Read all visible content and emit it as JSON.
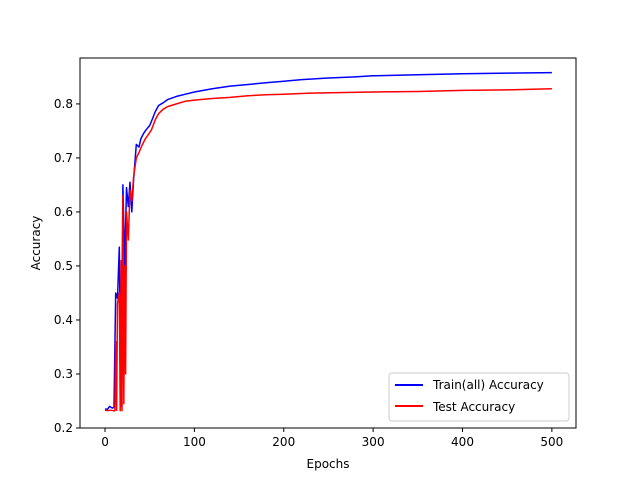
{
  "chart_data": {
    "type": "line",
    "title": "",
    "xlabel": "Epochs",
    "ylabel": "Accuracy",
    "xlim": [
      -28,
      527
    ],
    "ylim": [
      0.2,
      0.885
    ],
    "xticks": [
      0,
      100,
      200,
      300,
      400,
      500
    ],
    "yticks": [
      0.2,
      0.3,
      0.4,
      0.5,
      0.6,
      0.7,
      0.8
    ],
    "xtick_labels": [
      "0",
      "100",
      "200",
      "300",
      "400",
      "500"
    ],
    "ytick_labels": [
      "0.2",
      "0.3",
      "0.4",
      "0.5",
      "0.6",
      "0.7",
      "0.8"
    ],
    "grid": false,
    "legend_position": "lower-right",
    "series": [
      {
        "name": "Train(all) Accuracy",
        "color": "#0000ff",
        "points": [
          [
            0,
            0.235
          ],
          [
            3,
            0.235
          ],
          [
            5,
            0.24
          ],
          [
            8,
            0.237
          ],
          [
            10,
            0.238
          ],
          [
            12,
            0.45
          ],
          [
            14,
            0.44
          ],
          [
            16,
            0.535
          ],
          [
            18,
            0.24
          ],
          [
            20,
            0.65
          ],
          [
            22,
            0.5
          ],
          [
            24,
            0.645
          ],
          [
            26,
            0.61
          ],
          [
            28,
            0.655
          ],
          [
            30,
            0.6
          ],
          [
            32,
            0.66
          ],
          [
            35,
            0.725
          ],
          [
            38,
            0.72
          ],
          [
            40,
            0.735
          ],
          [
            43,
            0.745
          ],
          [
            46,
            0.752
          ],
          [
            50,
            0.76
          ],
          [
            53,
            0.772
          ],
          [
            56,
            0.785
          ],
          [
            60,
            0.797
          ],
          [
            65,
            0.802
          ],
          [
            70,
            0.808
          ],
          [
            80,
            0.814
          ],
          [
            90,
            0.818
          ],
          [
            100,
            0.822
          ],
          [
            120,
            0.828
          ],
          [
            140,
            0.833
          ],
          [
            160,
            0.836
          ],
          [
            180,
            0.839
          ],
          [
            200,
            0.842
          ],
          [
            220,
            0.845
          ],
          [
            250,
            0.848
          ],
          [
            280,
            0.85
          ],
          [
            300,
            0.852
          ],
          [
            350,
            0.854
          ],
          [
            400,
            0.856
          ],
          [
            450,
            0.857
          ],
          [
            500,
            0.858
          ]
        ]
      },
      {
        "name": "Test Accuracy",
        "color": "#ff0000",
        "points": [
          [
            0,
            0.233
          ],
          [
            3,
            0.232
          ],
          [
            6,
            0.233
          ],
          [
            9,
            0.232
          ],
          [
            11,
            0.232
          ],
          [
            12,
            0.36
          ],
          [
            13,
            0.233
          ],
          [
            14,
            0.43
          ],
          [
            16,
            0.45
          ],
          [
            17,
            0.232
          ],
          [
            18,
            0.51
          ],
          [
            19,
            0.232
          ],
          [
            20,
            0.63
          ],
          [
            21,
            0.245
          ],
          [
            22,
            0.5
          ],
          [
            23,
            0.3
          ],
          [
            24,
            0.6
          ],
          [
            26,
            0.548
          ],
          [
            28,
            0.64
          ],
          [
            30,
            0.62
          ],
          [
            32,
            0.665
          ],
          [
            35,
            0.7
          ],
          [
            38,
            0.71
          ],
          [
            41,
            0.722
          ],
          [
            45,
            0.735
          ],
          [
            48,
            0.742
          ],
          [
            52,
            0.752
          ],
          [
            56,
            0.77
          ],
          [
            60,
            0.782
          ],
          [
            65,
            0.79
          ],
          [
            70,
            0.795
          ],
          [
            80,
            0.8
          ],
          [
            90,
            0.805
          ],
          [
            100,
            0.807
          ],
          [
            120,
            0.81
          ],
          [
            140,
            0.812
          ],
          [
            160,
            0.815
          ],
          [
            180,
            0.817
          ],
          [
            200,
            0.818
          ],
          [
            230,
            0.82
          ],
          [
            260,
            0.821
          ],
          [
            300,
            0.822
          ],
          [
            350,
            0.823
          ],
          [
            400,
            0.825
          ],
          [
            450,
            0.826
          ],
          [
            500,
            0.828
          ]
        ]
      }
    ]
  }
}
